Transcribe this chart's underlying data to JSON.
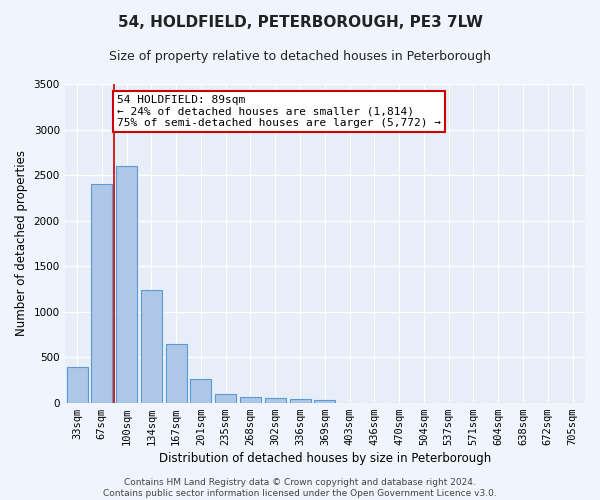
{
  "title": "54, HOLDFIELD, PETERBOROUGH, PE3 7LW",
  "subtitle": "Size of property relative to detached houses in Peterborough",
  "xlabel": "Distribution of detached houses by size in Peterborough",
  "ylabel": "Number of detached properties",
  "footer_line1": "Contains HM Land Registry data © Crown copyright and database right 2024.",
  "footer_line2": "Contains public sector information licensed under the Open Government Licence v3.0.",
  "categories": [
    "33sqm",
    "67sqm",
    "100sqm",
    "134sqm",
    "167sqm",
    "201sqm",
    "235sqm",
    "268sqm",
    "302sqm",
    "336sqm",
    "369sqm",
    "403sqm",
    "436sqm",
    "470sqm",
    "504sqm",
    "537sqm",
    "571sqm",
    "604sqm",
    "638sqm",
    "672sqm",
    "705sqm"
  ],
  "values": [
    390,
    2400,
    2600,
    1240,
    640,
    260,
    100,
    60,
    55,
    45,
    30,
    0,
    0,
    0,
    0,
    0,
    0,
    0,
    0,
    0,
    0
  ],
  "bar_color": "#aec6e8",
  "bar_edge_color": "#5b9bd5",
  "bar_edge_width": 0.8,
  "background_color": "#e8eef8",
  "fig_background_color": "#f0f4fc",
  "grid_color": "#ffffff",
  "ylim": [
    0,
    3500
  ],
  "yticks": [
    0,
    500,
    1000,
    1500,
    2000,
    2500,
    3000,
    3500
  ],
  "annotation_line1": "54 HOLDFIELD: 89sqm",
  "annotation_line2": "← 24% of detached houses are smaller (1,814)",
  "annotation_line3": "75% of semi-detached houses are larger (5,772) →",
  "red_line_x": 1.5,
  "annotation_box_color": "#ffffff",
  "annotation_border_color": "#cc0000",
  "title_fontsize": 11,
  "subtitle_fontsize": 9,
  "axis_label_fontsize": 8.5,
  "tick_fontsize": 7.5,
  "annotation_fontsize": 8,
  "footer_fontsize": 6.5
}
